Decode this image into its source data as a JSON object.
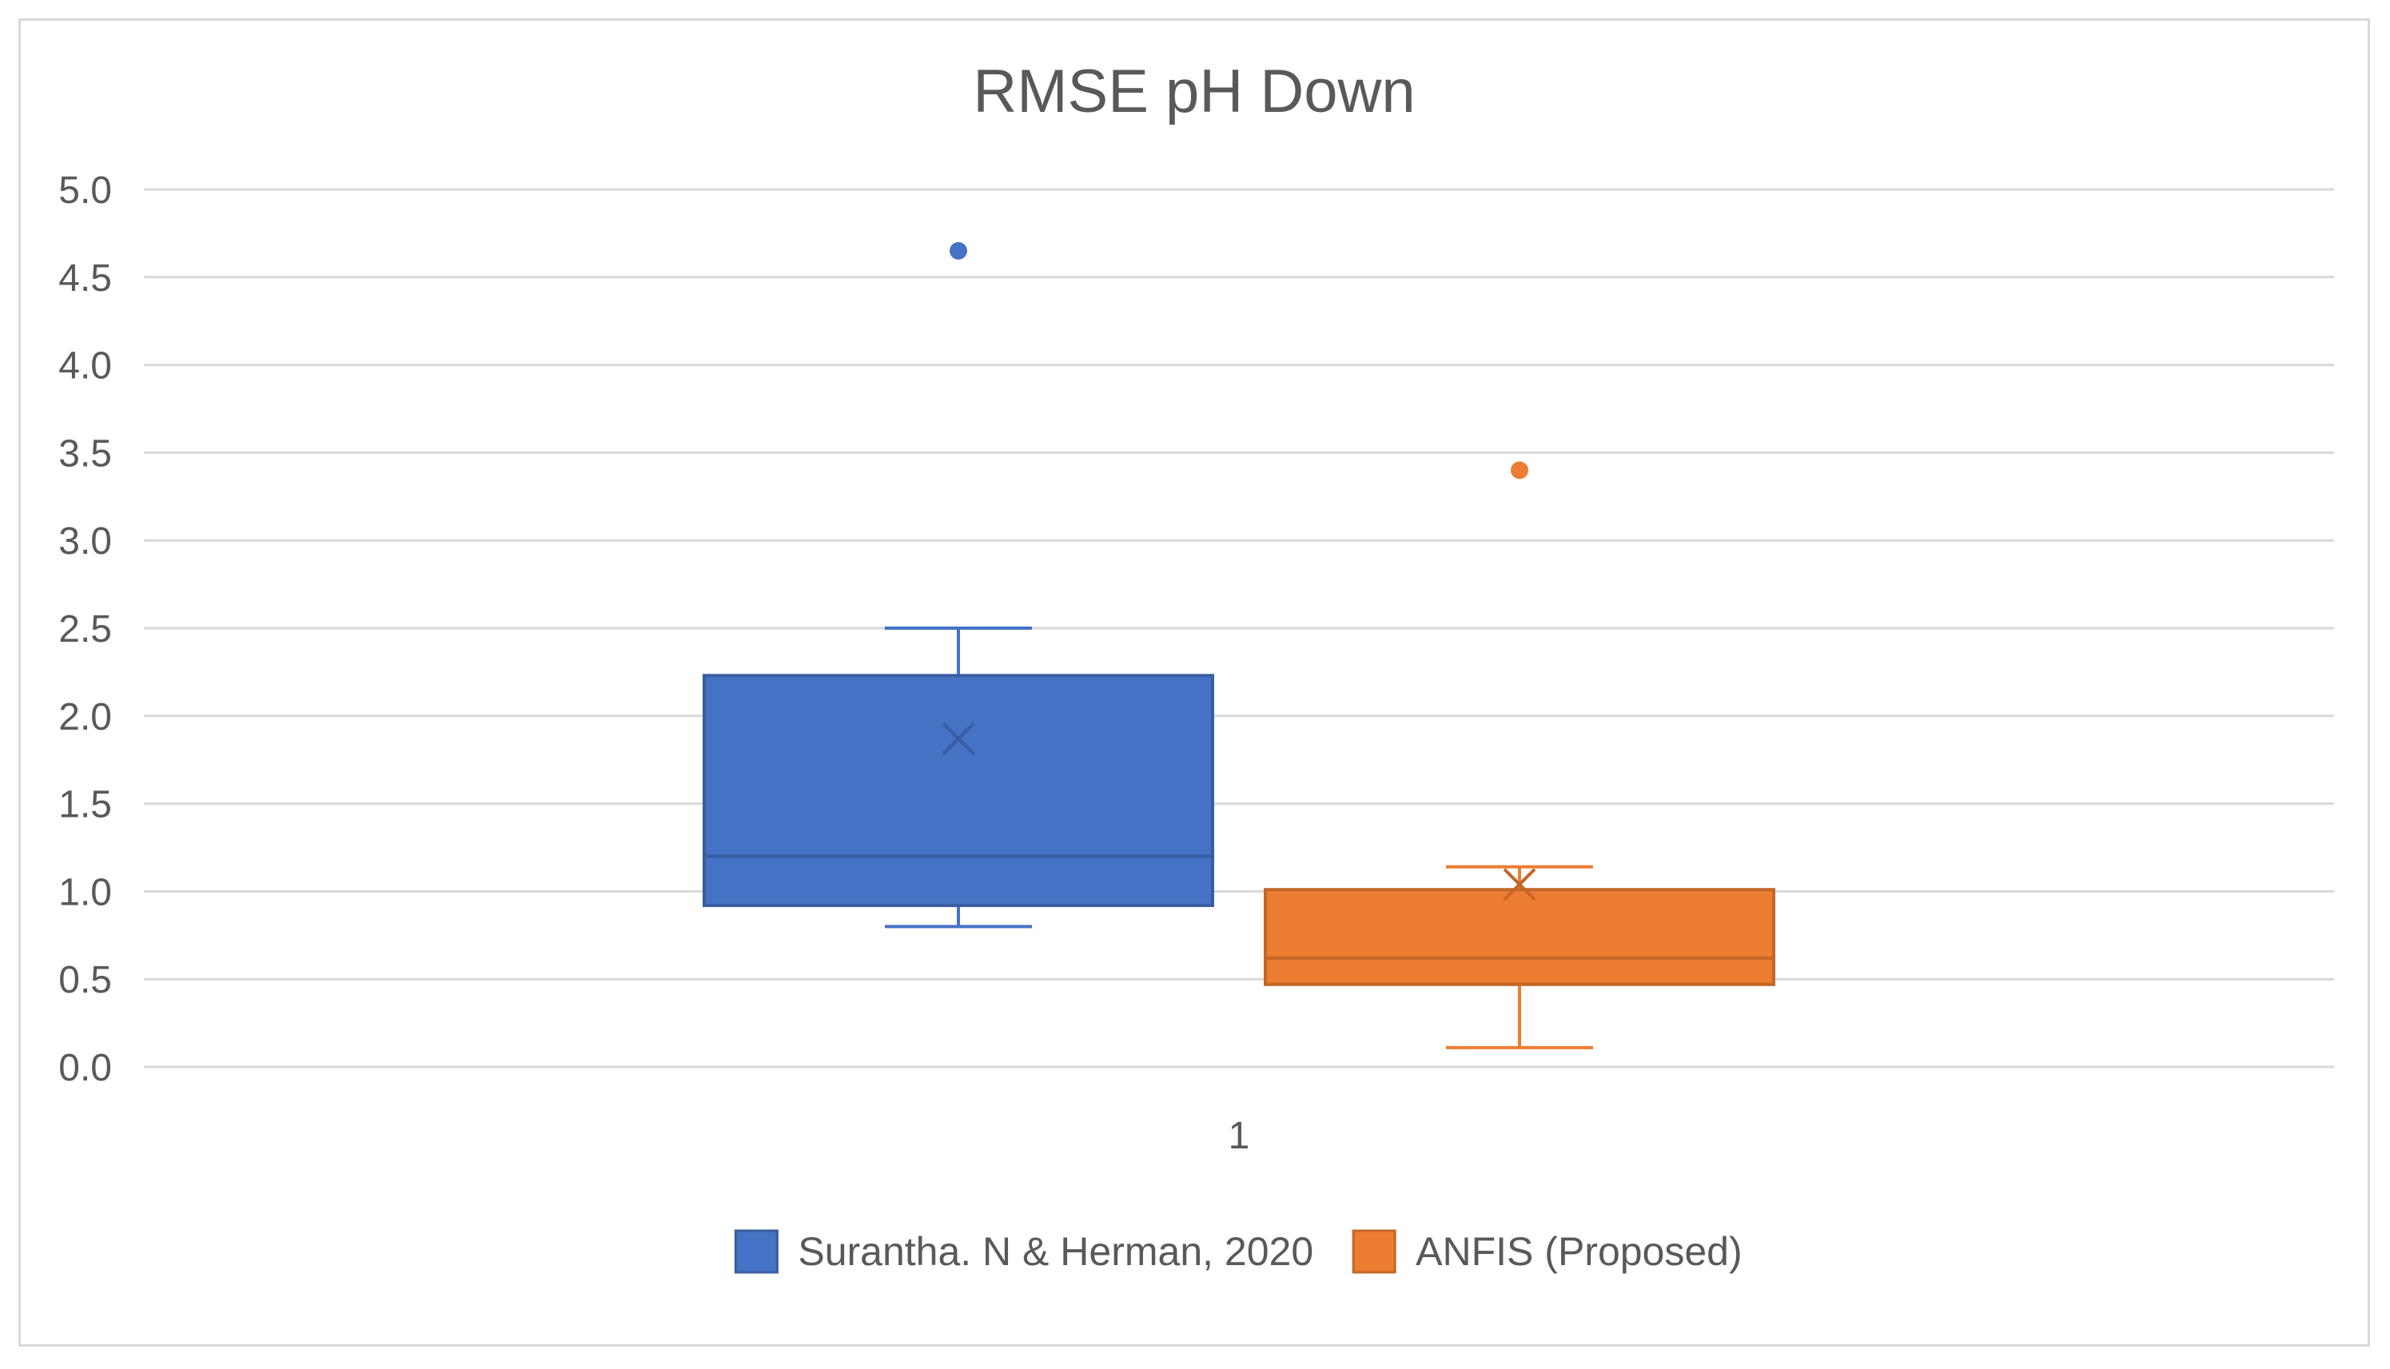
{
  "chart_data": {
    "type": "box",
    "title": "RMSE pH Down",
    "xlabel": "",
    "ylabel": "",
    "categories": [
      "1"
    ],
    "ylim": [
      0,
      5
    ],
    "yticks": [
      "0.0",
      "0.5",
      "1.0",
      "1.5",
      "2.0",
      "2.5",
      "3.0",
      "3.5",
      "4.0",
      "4.5",
      "5.0"
    ],
    "grid": true,
    "legend_position": "bottom",
    "series": [
      {
        "name": "Surantha. N & Herman, 2020",
        "color": "#4472c4",
        "min": 0.8,
        "q1": 0.92,
        "median": 1.2,
        "q3": 2.23,
        "max": 2.5,
        "mean": 1.87,
        "outliers": [
          4.65
        ]
      },
      {
        "name": "ANFIS (Proposed)",
        "color": "#ed7d31",
        "min": 0.11,
        "q1": 0.47,
        "median": 0.62,
        "q3": 1.01,
        "max": 1.14,
        "mean": 1.04,
        "outliers": [
          3.4
        ]
      }
    ]
  }
}
